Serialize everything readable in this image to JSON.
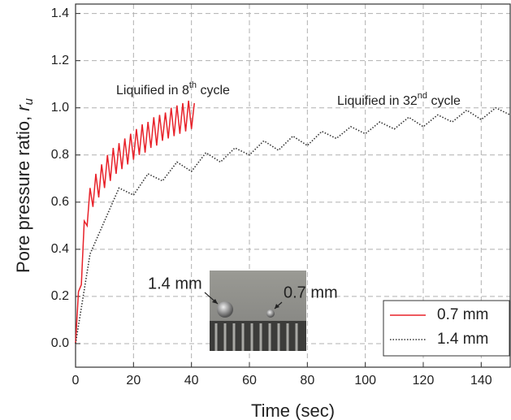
{
  "chart_data": {
    "type": "line",
    "x_label": "Time (sec)",
    "y_label": {
      "text": "Pore pressure ratio, ",
      "italic": "r",
      "sub": "u"
    },
    "xlim": [
      0,
      150
    ],
    "ylim": [
      -0.1,
      1.44
    ],
    "xticks": [
      0,
      20,
      40,
      60,
      80,
      100,
      120,
      140
    ],
    "yticks": [
      {
        "value": 0,
        "label": "0.0"
      },
      0.2,
      0.4,
      0.6,
      0.8,
      {
        "value": 1,
        "label": "1.0"
      },
      1.2,
      1.4
    ],
    "grid": true,
    "legend": "lower right",
    "series": [
      {
        "name": "0.7 mm",
        "color": "#e8222a",
        "style": "solid",
        "x": [
          0,
          1,
          2,
          3,
          4,
          5,
          6,
          7,
          8,
          9,
          10,
          11,
          12,
          13,
          14,
          15,
          16,
          17,
          18,
          19,
          20,
          21,
          22,
          23,
          24,
          25,
          26,
          27,
          28,
          29,
          30,
          31,
          32,
          33,
          34,
          35,
          36,
          37,
          38,
          39,
          40,
          41
        ],
        "values": [
          0,
          0.22,
          0.25,
          0.52,
          0.5,
          0.66,
          0.58,
          0.72,
          0.62,
          0.76,
          0.66,
          0.8,
          0.69,
          0.83,
          0.72,
          0.85,
          0.74,
          0.87,
          0.76,
          0.89,
          0.78,
          0.91,
          0.8,
          0.93,
          0.81,
          0.94,
          0.83,
          0.96,
          0.84,
          0.97,
          0.86,
          0.98,
          0.87,
          1.0,
          0.88,
          1.01,
          0.89,
          1.02,
          0.9,
          1.03,
          0.91,
          1.02
        ]
      },
      {
        "name": "1.4 mm",
        "color": "#333333",
        "style": "dotted",
        "x": [
          0,
          5,
          10,
          15,
          20,
          25,
          30,
          35,
          40,
          45,
          50,
          55,
          60,
          65,
          70,
          75,
          80,
          85,
          90,
          95,
          100,
          105,
          110,
          115,
          120,
          125,
          130,
          135,
          140,
          145,
          150
        ],
        "values": [
          0,
          0.38,
          0.52,
          0.66,
          0.63,
          0.72,
          0.69,
          0.77,
          0.73,
          0.81,
          0.77,
          0.83,
          0.8,
          0.86,
          0.82,
          0.88,
          0.84,
          0.9,
          0.87,
          0.92,
          0.89,
          0.94,
          0.91,
          0.96,
          0.92,
          0.97,
          0.94,
          0.99,
          0.95,
          1.0,
          0.97
        ]
      }
    ],
    "annotations": [
      {
        "text": "Liquified in 8",
        "sup": "th",
        "tail": " cycle"
      },
      {
        "text": "Liquified in 32",
        "sup": "nd",
        "tail": " cycle"
      }
    ],
    "inset_labels": [
      "1.4 mm",
      "0.7 mm"
    ]
  }
}
